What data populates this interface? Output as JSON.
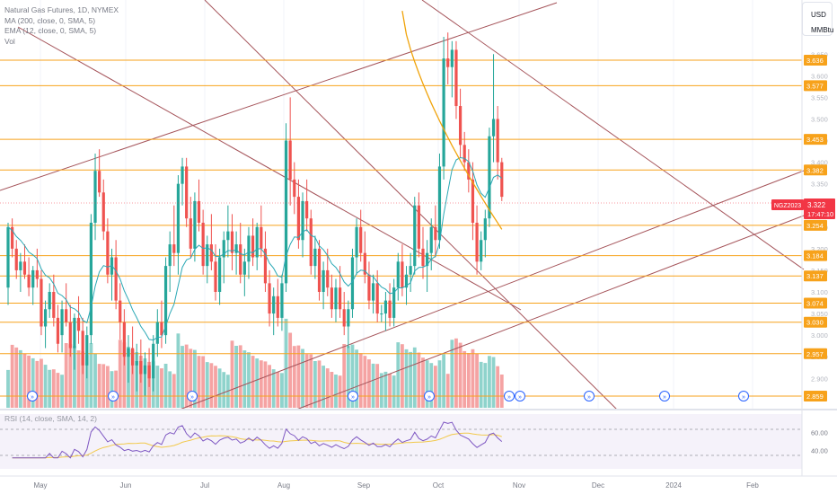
{
  "legend": {
    "title": "Natural Gas Futures, 1D, NYMEX",
    "ma": "MA (200, close, 0, SMA, 5)",
    "ema": "EMA (12, close, 0, SMA, 5)",
    "vol": "Vol"
  },
  "rsi_label": "RSI (14, close, SMA, 14, 2)",
  "currency": {
    "code": "USD",
    "unit": "MMBtu"
  },
  "symbol_badge": "NGZ2023",
  "last_price": "3.322",
  "countdown": "17:47:10",
  "price_axis_ticks": [
    "3.650",
    "3.600",
    "3.550",
    "3.500",
    "3.450",
    "3.400",
    "3.350",
    "3.300",
    "3.250",
    "3.200",
    "3.150",
    "3.100",
    "3.050",
    "3.000",
    "2.950",
    "2.900"
  ],
  "level_labels": [
    {
      "value": 3.636,
      "text": "3.636"
    },
    {
      "value": 3.577,
      "text": "3.577"
    },
    {
      "value": 3.453,
      "text": "3.453"
    },
    {
      "value": 3.382,
      "text": "3.382"
    },
    {
      "value": 3.254,
      "text": "3.254"
    },
    {
      "value": 3.184,
      "text": "3.184"
    },
    {
      "value": 3.137,
      "text": "3.137"
    },
    {
      "value": 3.074,
      "text": "3.074"
    },
    {
      "value": 3.03,
      "text": "3.030"
    },
    {
      "value": 2.957,
      "text": "2.957"
    },
    {
      "value": 2.859,
      "text": "2.859"
    }
  ],
  "rsi_axis_ticks": [
    "60.00",
    "40.00"
  ],
  "time_axis": [
    "May",
    "Jun",
    "Jul",
    "Aug",
    "Sep",
    "Oct",
    "Nov",
    "Dec",
    "2024",
    "Feb"
  ],
  "colors": {
    "up": "#26a69a",
    "down": "#ef5350",
    "vol_up": "#8fd3cc",
    "vol_down": "#f5a3a3",
    "level": "#f7a21b",
    "trend": "#a5545a",
    "ma": "#f0a30a",
    "ema": "#2aa8b5",
    "rsi": "#7e57c2",
    "rsi_ma": "#f2c94c",
    "badge": "#f23645"
  },
  "chart_data": {
    "type": "candlestick",
    "ohlc": [
      [
        3.11,
        3.26,
        3.07,
        3.25
      ],
      [
        3.25,
        3.27,
        3.18,
        3.2
      ],
      [
        3.2,
        3.22,
        3.13,
        3.15
      ],
      [
        3.15,
        3.19,
        3.1,
        3.17
      ],
      [
        3.17,
        3.21,
        3.13,
        3.14
      ],
      [
        3.14,
        3.18,
        3.09,
        3.11
      ],
      [
        3.11,
        3.16,
        3.07,
        3.15
      ],
      [
        3.15,
        3.2,
        3.11,
        3.13
      ],
      [
        3.13,
        3.15,
        3.0,
        3.02
      ],
      [
        3.02,
        3.08,
        2.97,
        3.06
      ],
      [
        3.06,
        3.12,
        3.04,
        3.1
      ],
      [
        3.1,
        3.14,
        3.02,
        3.04
      ],
      [
        3.04,
        3.07,
        2.96,
        2.98
      ],
      [
        3.0,
        3.08,
        2.96,
        3.06
      ],
      [
        3.06,
        3.12,
        3.02,
        3.03
      ],
      [
        3.03,
        3.07,
        2.95,
        2.97
      ],
      [
        2.97,
        3.05,
        2.92,
        3.04
      ],
      [
        3.04,
        3.09,
        2.98,
        3.01
      ],
      [
        3.01,
        3.04,
        2.91,
        2.93
      ],
      [
        2.93,
        3.02,
        2.9,
        3.0
      ],
      [
        3.0,
        3.28,
        2.98,
        3.26
      ],
      [
        3.26,
        3.42,
        3.22,
        3.38
      ],
      [
        3.38,
        3.43,
        3.32,
        3.33
      ],
      [
        3.33,
        3.36,
        3.22,
        3.24
      ],
      [
        3.24,
        3.27,
        3.12,
        3.14
      ],
      [
        3.14,
        3.2,
        3.08,
        3.18
      ],
      [
        3.18,
        3.22,
        3.06,
        3.08
      ],
      [
        3.08,
        3.12,
        2.99,
        3.03
      ],
      [
        3.03,
        3.06,
        2.93,
        2.95
      ],
      [
        2.95,
        3.0,
        2.89,
        2.97
      ],
      [
        2.97,
        3.02,
        2.91,
        2.93
      ],
      [
        2.93,
        2.98,
        2.87,
        2.94
      ],
      [
        2.94,
        2.99,
        2.89,
        2.91
      ],
      [
        2.91,
        2.96,
        2.86,
        2.93
      ],
      [
        2.93,
        2.97,
        2.88,
        2.9
      ],
      [
        2.9,
        3.0,
        2.87,
        2.98
      ],
      [
        2.98,
        3.06,
        2.95,
        3.03
      ],
      [
        3.03,
        3.08,
        2.97,
        3.0
      ],
      [
        3.0,
        3.18,
        2.98,
        3.16
      ],
      [
        3.16,
        3.24,
        3.1,
        3.21
      ],
      [
        3.21,
        3.3,
        3.16,
        3.19
      ],
      [
        3.19,
        3.37,
        3.14,
        3.35
      ],
      [
        3.35,
        3.41,
        3.3,
        3.39
      ],
      [
        3.39,
        3.41,
        3.25,
        3.27
      ],
      [
        3.27,
        3.32,
        3.18,
        3.2
      ],
      [
        3.2,
        3.33,
        3.17,
        3.31
      ],
      [
        3.31,
        3.36,
        3.24,
        3.26
      ],
      [
        3.26,
        3.29,
        3.14,
        3.16
      ],
      [
        3.16,
        3.23,
        3.12,
        3.21
      ],
      [
        3.21,
        3.28,
        3.15,
        3.17
      ],
      [
        3.17,
        3.21,
        3.08,
        3.1
      ],
      [
        3.1,
        3.2,
        3.07,
        3.18
      ],
      [
        3.18,
        3.24,
        3.12,
        3.22
      ],
      [
        3.22,
        3.3,
        3.18,
        3.24
      ],
      [
        3.24,
        3.28,
        3.15,
        3.19
      ],
      [
        3.19,
        3.24,
        3.14,
        3.21
      ],
      [
        3.21,
        3.26,
        3.12,
        3.14
      ],
      [
        3.14,
        3.2,
        3.09,
        3.17
      ],
      [
        3.17,
        3.25,
        3.13,
        3.23
      ],
      [
        3.23,
        3.27,
        3.16,
        3.18
      ],
      [
        3.18,
        3.26,
        3.15,
        3.25
      ],
      [
        3.25,
        3.3,
        3.18,
        3.2
      ],
      [
        3.2,
        3.24,
        3.1,
        3.12
      ],
      [
        3.12,
        3.15,
        3.02,
        3.05
      ],
      [
        3.05,
        3.11,
        3.0,
        3.09
      ],
      [
        3.09,
        3.13,
        3.02,
        3.04
      ],
      [
        3.04,
        3.14,
        3.01,
        3.12
      ],
      [
        3.12,
        3.49,
        3.1,
        3.45
      ],
      [
        3.45,
        3.55,
        3.3,
        3.36
      ],
      [
        3.36,
        3.4,
        3.28,
        3.32
      ],
      [
        3.32,
        3.36,
        3.2,
        3.22
      ],
      [
        3.22,
        3.33,
        3.18,
        3.31
      ],
      [
        3.31,
        3.36,
        3.24,
        3.27
      ],
      [
        3.27,
        3.29,
        3.14,
        3.16
      ],
      [
        3.16,
        3.23,
        3.13,
        3.2
      ],
      [
        3.2,
        3.22,
        3.08,
        3.1
      ],
      [
        3.1,
        3.17,
        3.06,
        3.15
      ],
      [
        3.15,
        3.2,
        3.09,
        3.11
      ],
      [
        3.11,
        3.14,
        3.04,
        3.06
      ],
      [
        3.06,
        3.13,
        3.03,
        3.11
      ],
      [
        3.11,
        3.16,
        3.04,
        3.06
      ],
      [
        3.06,
        3.1,
        3.0,
        3.02
      ],
      [
        3.02,
        3.08,
        2.97,
        3.06
      ],
      [
        3.06,
        3.2,
        3.04,
        3.18
      ],
      [
        3.18,
        3.27,
        3.14,
        3.25
      ],
      [
        3.25,
        3.29,
        3.17,
        3.19
      ],
      [
        3.19,
        3.24,
        3.12,
        3.14
      ],
      [
        3.14,
        3.17,
        3.06,
        3.08
      ],
      [
        3.08,
        3.14,
        3.05,
        3.12
      ],
      [
        3.12,
        3.15,
        3.03,
        3.05
      ],
      [
        3.05,
        3.07,
        3.03,
        3.05
      ],
      [
        3.05,
        3.1,
        3.01,
        3.08
      ],
      [
        3.08,
        3.12,
        3.02,
        3.04
      ],
      [
        3.04,
        3.13,
        3.02,
        3.11
      ],
      [
        3.11,
        3.19,
        3.08,
        3.17
      ],
      [
        3.17,
        3.21,
        3.09,
        3.11
      ],
      [
        3.11,
        3.16,
        3.07,
        3.14
      ],
      [
        3.14,
        3.19,
        3.1,
        3.16
      ],
      [
        3.16,
        3.32,
        3.14,
        3.3
      ],
      [
        3.3,
        3.33,
        3.18,
        3.2
      ],
      [
        3.2,
        3.25,
        3.13,
        3.16
      ],
      [
        3.16,
        3.22,
        3.1,
        3.19
      ],
      [
        3.19,
        3.27,
        3.15,
        3.25
      ],
      [
        3.25,
        3.3,
        3.18,
        3.22
      ],
      [
        3.22,
        3.42,
        3.2,
        3.39
      ],
      [
        3.39,
        3.69,
        3.36,
        3.64
      ],
      [
        3.64,
        3.7,
        3.58,
        3.62
      ],
      [
        3.62,
        3.68,
        3.55,
        3.66
      ],
      [
        3.66,
        3.68,
        3.5,
        3.53
      ],
      [
        3.53,
        3.57,
        3.41,
        3.44
      ],
      [
        3.44,
        3.47,
        3.38,
        3.4
      ],
      [
        3.4,
        3.43,
        3.33,
        3.36
      ],
      [
        3.36,
        3.4,
        3.22,
        3.26
      ],
      [
        3.26,
        3.3,
        3.14,
        3.17
      ],
      [
        3.17,
        3.24,
        3.15,
        3.22
      ],
      [
        3.22,
        3.29,
        3.18,
        3.27
      ],
      [
        3.27,
        3.48,
        3.25,
        3.46
      ],
      [
        3.46,
        3.65,
        3.4,
        3.5
      ],
      [
        3.5,
        3.53,
        3.36,
        3.4
      ],
      [
        3.4,
        3.41,
        3.31,
        3.32
      ]
    ],
    "price_range": [
      2.86,
      3.71
    ],
    "levels": [
      3.636,
      3.577,
      3.453,
      3.382,
      3.254,
      3.184,
      3.137,
      3.074,
      3.03,
      2.957,
      2.859
    ],
    "rsi_range": [
      20,
      80
    ]
  }
}
